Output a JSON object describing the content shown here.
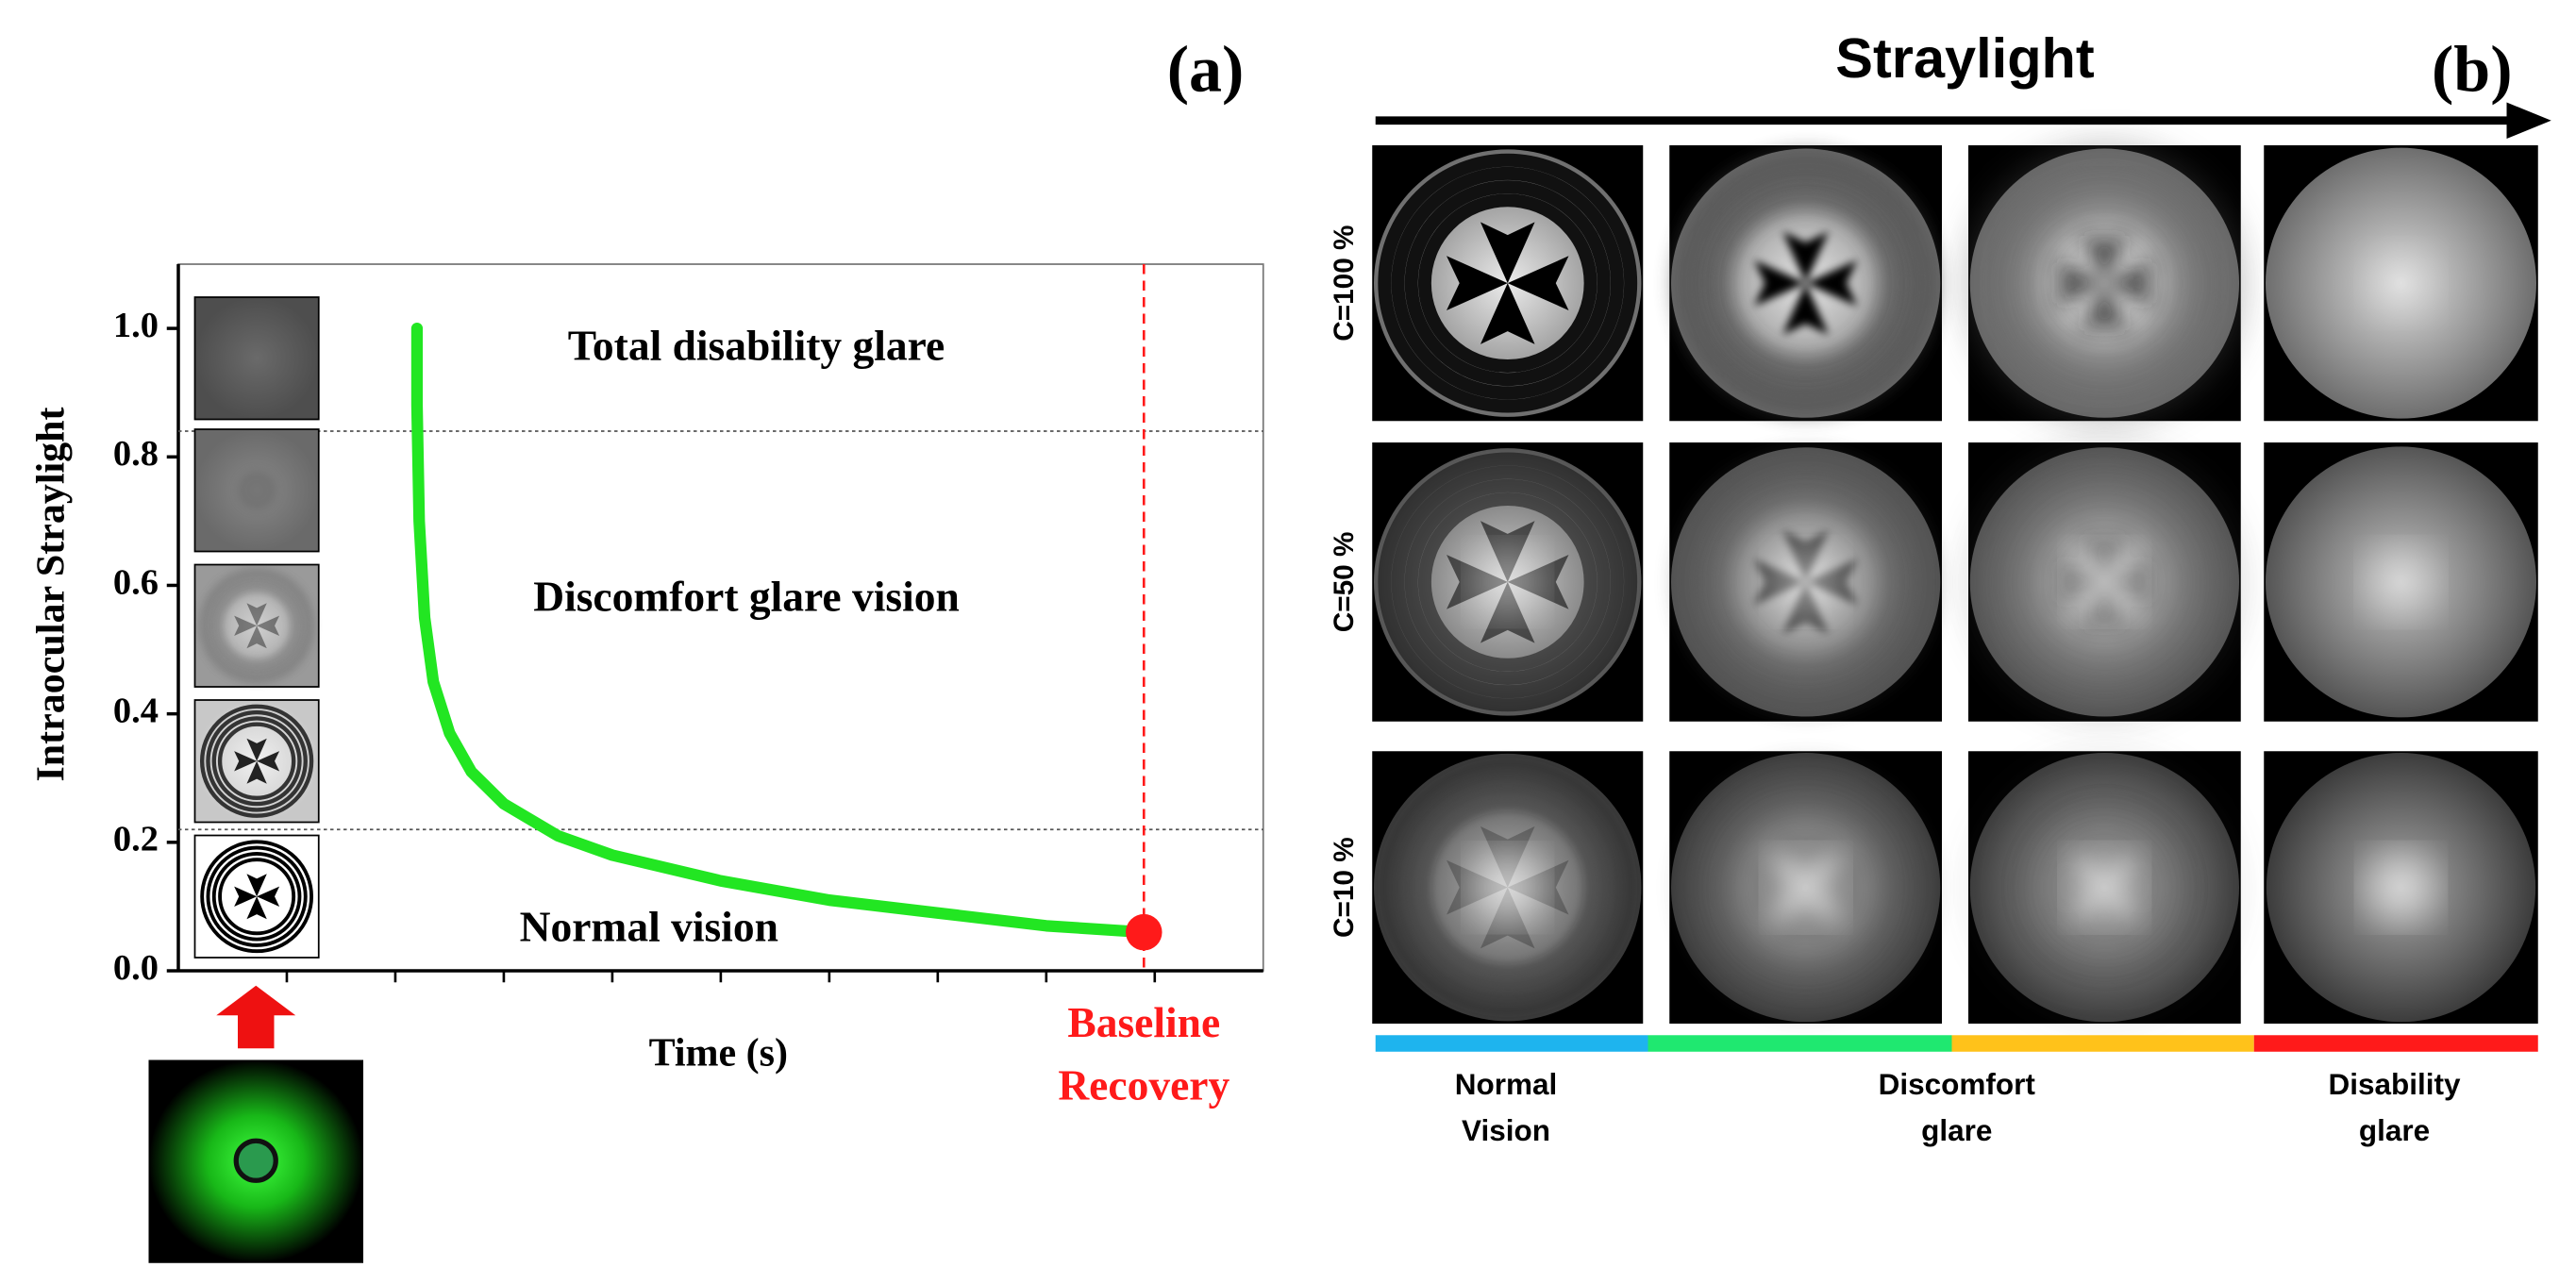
{
  "chart_data": {
    "type": "line",
    "panel_label": "(a)",
    "ylabel": "Intraocular Straylight",
    "xlabel": "Time (s)",
    "xlim": [
      0,
      10
    ],
    "xticks": [
      1,
      2,
      3,
      4,
      5,
      6,
      7,
      8,
      9
    ],
    "ylim": [
      0,
      1.1
    ],
    "yticks": [
      {
        "value": 0,
        "label": "0.0"
      },
      0.2,
      0.4,
      0.6,
      0.8,
      {
        "value": 1,
        "label": "1.0"
      }
    ],
    "series": [
      {
        "color": "#22e622",
        "x": [
          2.2,
          2.2,
          2.22,
          2.27,
          2.35,
          2.5,
          2.7,
          3.0,
          3.5,
          4,
          5,
          6,
          7,
          8,
          8.9
        ],
        "values": [
          1.0,
          0.88,
          0.7,
          0.55,
          0.45,
          0.37,
          0.31,
          0.26,
          0.21,
          0.18,
          0.14,
          0.11,
          0.09,
          0.07,
          0.06
        ]
      }
    ],
    "hlines": [
      0.84,
      0.22
    ],
    "annotations": [
      "Total disability glare",
      "Discomfort glare vision",
      "Normal vision"
    ],
    "baseline": {
      "x": 8.9,
      "y": 0.06,
      "label": [
        "Baseline",
        "Recovery"
      ],
      "color": "#ff1a1a"
    }
  },
  "panel_b": {
    "panel_label": "(b)",
    "title": "Straylight",
    "rows": [
      "C=100 %",
      "C=50 %",
      "C=10 %"
    ],
    "band_colors": [
      "#1eb4ee",
      "#1fe870",
      "#ffc21a",
      "#ff1a1a"
    ],
    "band_labels": [
      [
        "Normal",
        "Vision"
      ],
      [
        "Discomfort",
        "glare"
      ],
      [
        "Disability",
        "glare"
      ]
    ]
  }
}
